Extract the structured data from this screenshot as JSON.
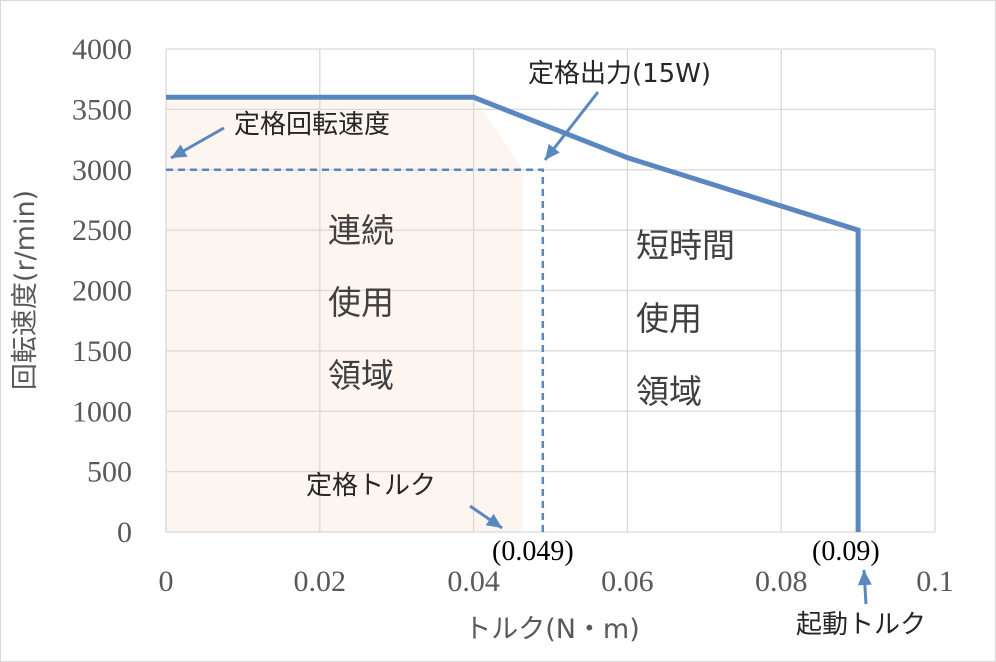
{
  "chart_data": {
    "type": "line",
    "xlabel": "トルク(N・m)",
    "ylabel": "回転速度(r/min)",
    "xlim": [
      0,
      0.1
    ],
    "ylim": [
      0,
      4000
    ],
    "x_ticks": [
      "0",
      "0.02",
      "0.04",
      "0.06",
      "0.08",
      "0.1"
    ],
    "y_ticks": [
      "0",
      "500",
      "1000",
      "1500",
      "2000",
      "2500",
      "3000",
      "3500",
      "4000"
    ],
    "grid": true,
    "series": [
      {
        "x": [
          0,
          0.04,
          0.06,
          0.09,
          0.09
        ],
        "y": [
          3600,
          3600,
          3100,
          2500,
          0
        ],
        "color": "#5b87c0"
      }
    ],
    "rated_box": {
      "x": [
        0,
        0.049,
        0.049
      ],
      "y": [
        3000,
        3000,
        0
      ],
      "color": "#5b87c0"
    },
    "shaded_region": {
      "x": [
        0,
        0.04,
        0.0465,
        0.0465,
        0
      ],
      "y": [
        3600,
        3600,
        3000,
        0,
        0
      ],
      "color": "#fdf6f0"
    },
    "regions": {
      "continuous": [
        "連続",
        "使用",
        "領域"
      ],
      "short_time": [
        "短時間",
        "使用",
        "領域"
      ]
    },
    "annotations": {
      "rated_speed": "定格回転速度",
      "rated_output": "定格出力(15W)",
      "rated_torque": "定格トルク",
      "rated_torque_value": "(0.049)",
      "starting_torque_value": "(0.09)",
      "starting_torque": "起動トルク"
    },
    "accent_color": "#5b87c0"
  }
}
